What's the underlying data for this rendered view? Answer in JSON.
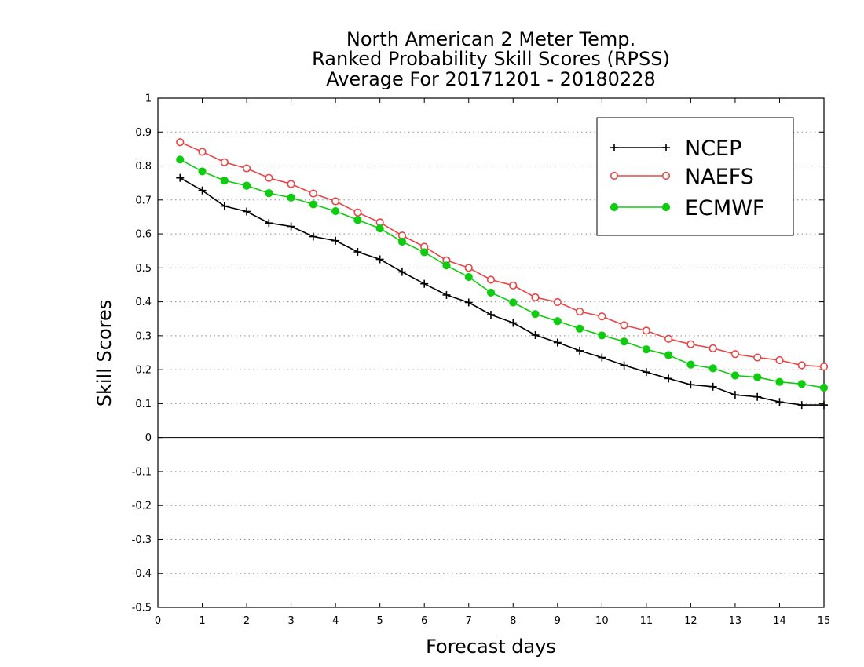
{
  "chart_data": {
    "type": "line",
    "title_lines": [
      "North American 2 Meter Temp.",
      "Ranked Probability Skill Scores (RPSS)",
      "Average For 20171201 - 20180228"
    ],
    "xlabel": "Forecast days",
    "ylabel": "Skill Scores",
    "xlim": [
      0,
      15
    ],
    "ylim": [
      -0.5,
      1
    ],
    "xticks": [
      0,
      1,
      2,
      3,
      4,
      5,
      6,
      7,
      8,
      9,
      10,
      11,
      12,
      13,
      14,
      15
    ],
    "yticks": [
      -0.5,
      -0.4,
      -0.3,
      -0.2,
      -0.1,
      0,
      0.1,
      0.2,
      0.3,
      0.4,
      0.5,
      0.6,
      0.7,
      0.8,
      0.9,
      1
    ],
    "grid": "horizontal dotted",
    "legend_position": "top-right",
    "x": [
      0.5,
      1,
      1.5,
      2,
      2.5,
      3,
      3.5,
      4,
      4.5,
      5,
      5.5,
      6,
      6.5,
      7,
      7.5,
      8,
      8.5,
      9,
      9.5,
      10,
      10.5,
      11,
      11.5,
      12,
      12.5,
      13,
      13.5,
      14,
      14.5,
      15
    ],
    "series": [
      {
        "name": "NCEP",
        "color": "#000000",
        "marker": "plus",
        "values": [
          0.765,
          0.728,
          0.682,
          0.666,
          0.632,
          0.622,
          0.592,
          0.58,
          0.547,
          0.525,
          0.488,
          0.453,
          0.42,
          0.398,
          0.362,
          0.338,
          0.302,
          0.28,
          0.256,
          0.236,
          0.213,
          0.193,
          0.174,
          0.156,
          0.15,
          0.126,
          0.12,
          0.105,
          0.096,
          0.096
        ]
      },
      {
        "name": "NAEFS",
        "color": "#e84545",
        "marker": "open-circle",
        "values": [
          0.87,
          0.842,
          0.811,
          0.793,
          0.765,
          0.747,
          0.719,
          0.696,
          0.663,
          0.634,
          0.595,
          0.562,
          0.522,
          0.5,
          0.465,
          0.448,
          0.413,
          0.399,
          0.371,
          0.357,
          0.331,
          0.315,
          0.291,
          0.275,
          0.263,
          0.246,
          0.236,
          0.228,
          0.213,
          0.209
        ]
      },
      {
        "name": "ECMWF",
        "color": "#10cc10",
        "marker": "filled-circle",
        "values": [
          0.819,
          0.784,
          0.757,
          0.742,
          0.72,
          0.707,
          0.687,
          0.667,
          0.641,
          0.616,
          0.577,
          0.546,
          0.507,
          0.473,
          0.427,
          0.398,
          0.364,
          0.343,
          0.321,
          0.301,
          0.283,
          0.26,
          0.243,
          0.215,
          0.204,
          0.183,
          0.178,
          0.164,
          0.158,
          0.147
        ]
      }
    ]
  }
}
